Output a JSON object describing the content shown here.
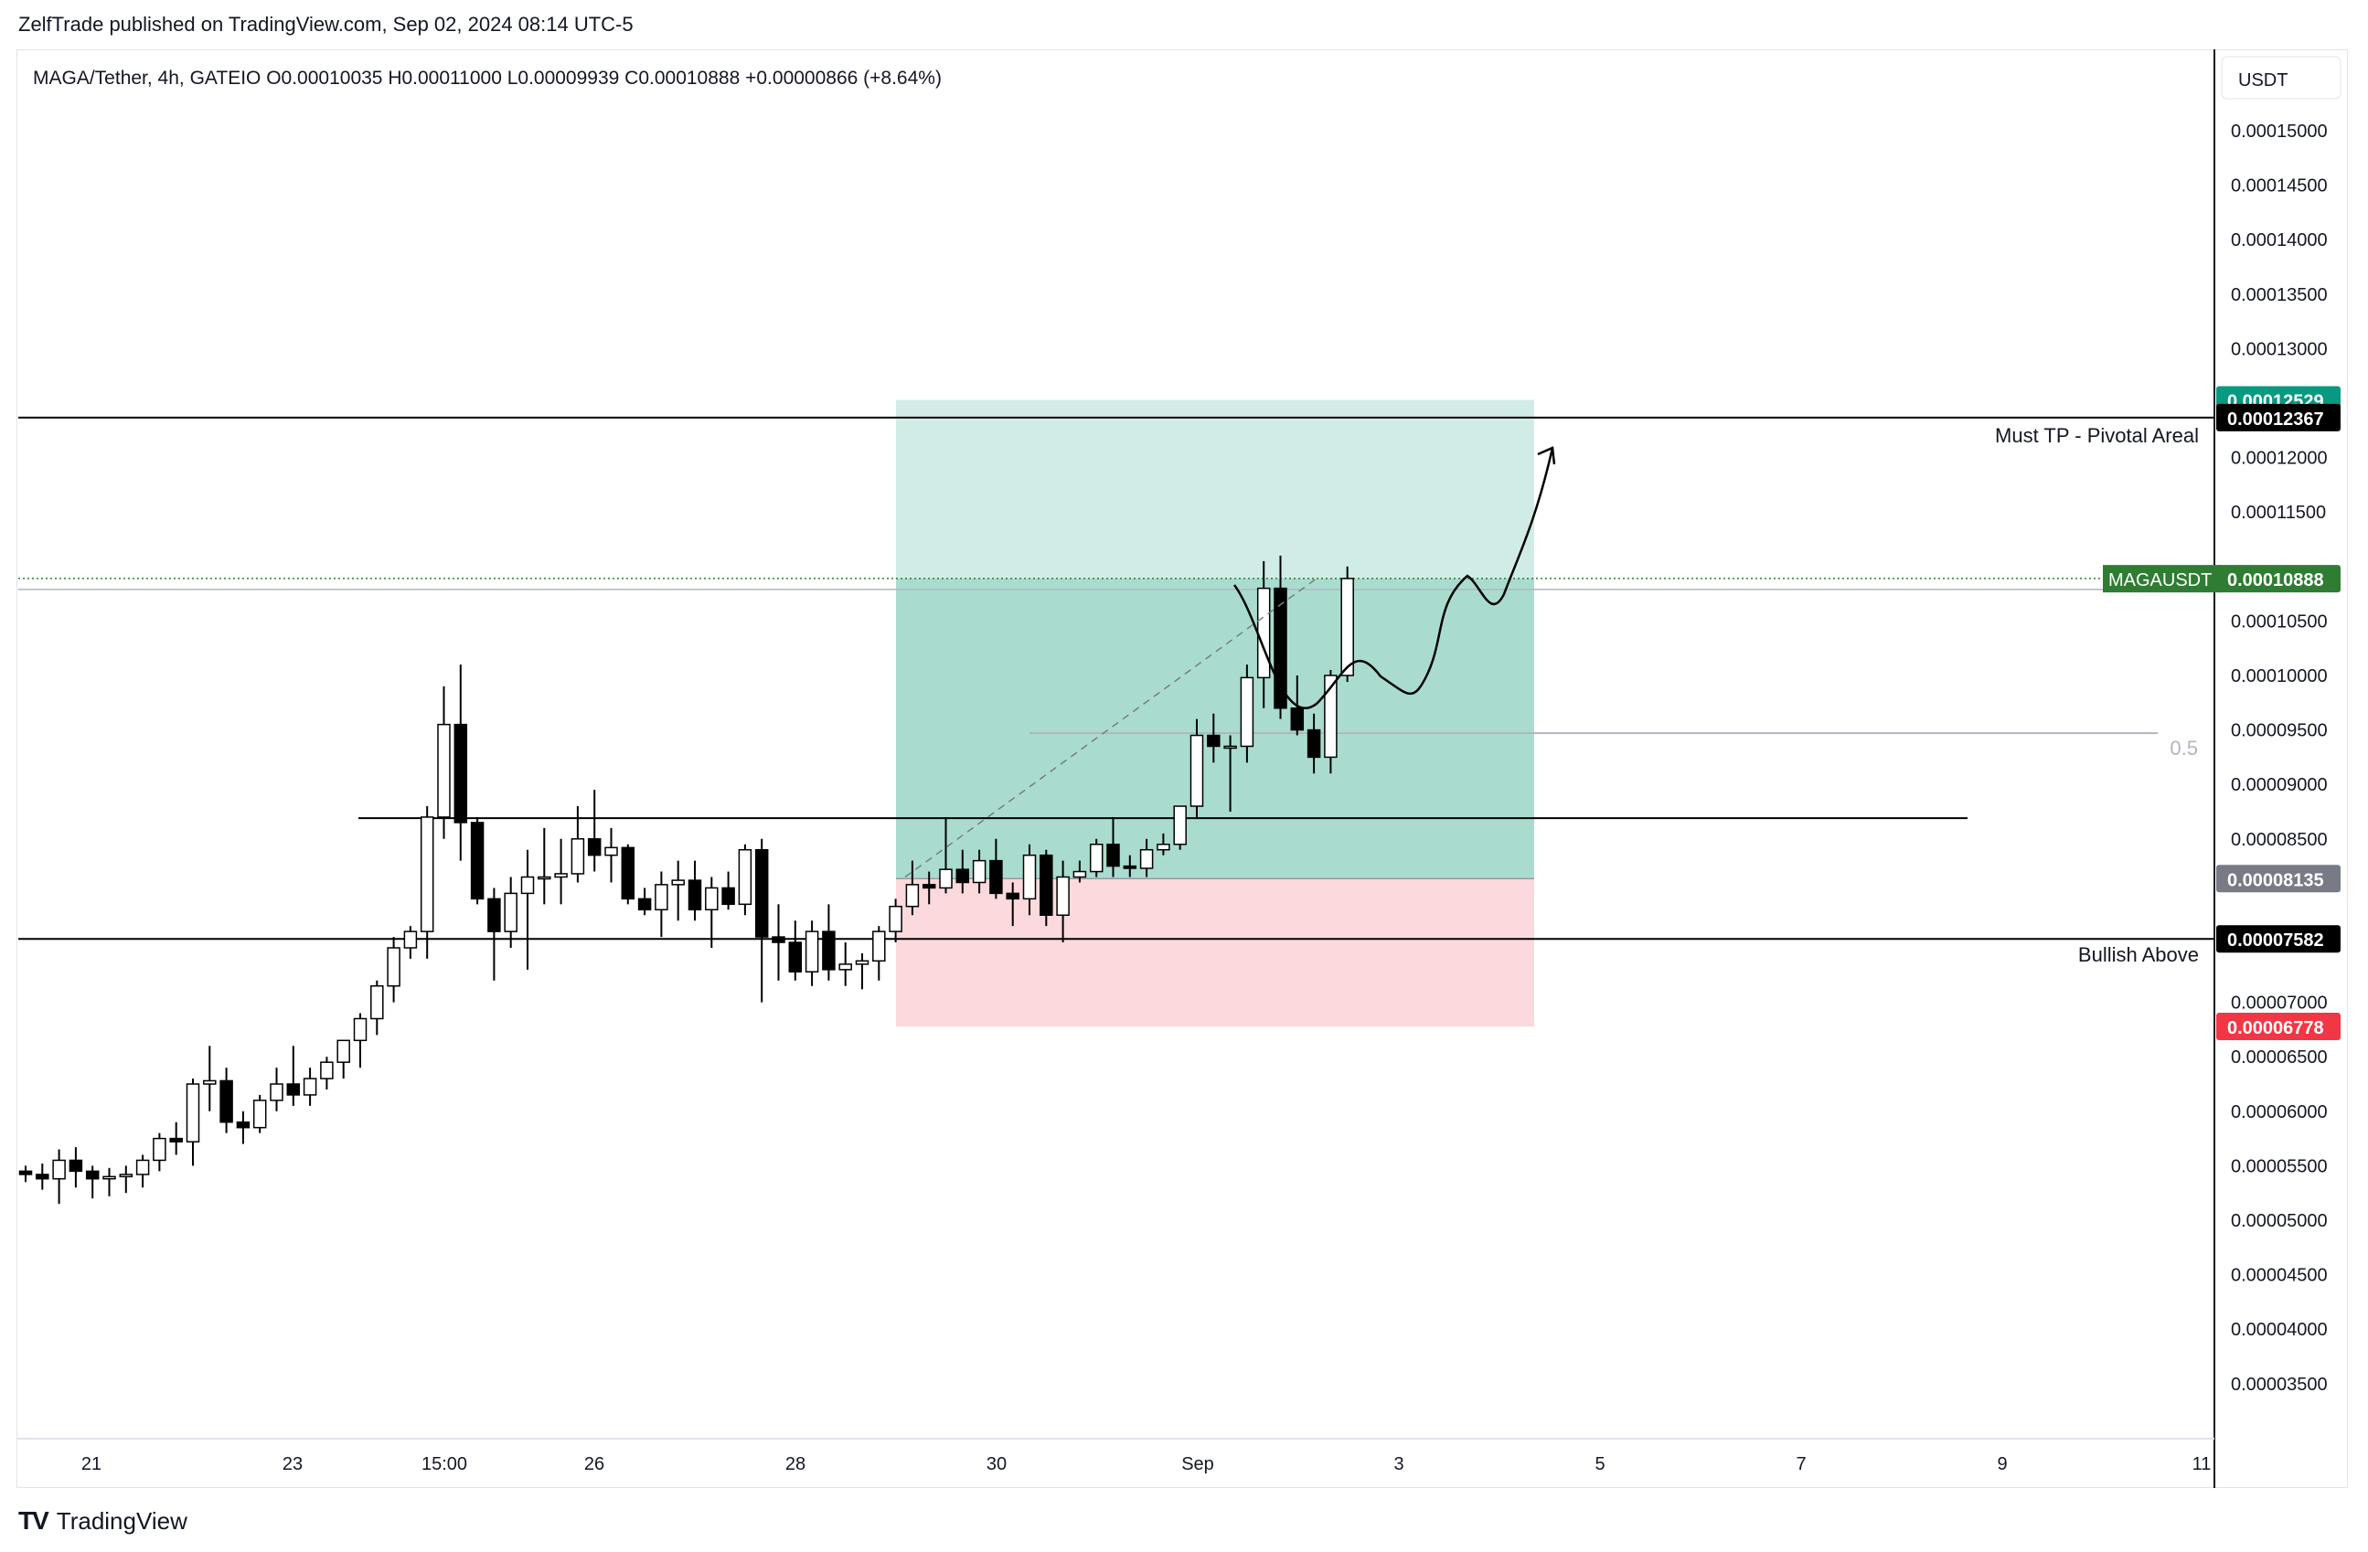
{
  "header": {
    "publisher_line": "ZelfTrade published on TradingView.com, Sep 02, 2024 08:14 UTC-5",
    "symbol_line": "MAGA/Tether, 4h, GATEIO  O0.00010035  H0.00011000  L0.00009939  C0.00010888  +0.00000866 (+8.64%)"
  },
  "footer": {
    "brand": "TradingView",
    "mark": "TV"
  },
  "price_axis": {
    "currency": "USDT",
    "ticks": [
      "0.00015000",
      "0.00014500",
      "0.00014000",
      "0.00013500",
      "0.00013000",
      "0.00012000",
      "0.00011500",
      "0.00010500",
      "0.00010000",
      "0.00009500",
      "0.00009000",
      "0.00008500",
      "0.00007000",
      "0.00006500",
      "0.00006000",
      "0.00005500",
      "0.00005000",
      "0.00004500",
      "0.00004000",
      "0.00003500"
    ],
    "tick_values": [
      0.00015,
      0.000145,
      0.00014,
      0.000135,
      0.00013,
      0.00012,
      0.000115,
      0.000105,
      0.0001,
      9.5e-05,
      9e-05,
      8.5e-05,
      7e-05,
      6.5e-05,
      6e-05,
      5.5e-05,
      5e-05,
      4.5e-05,
      4e-05,
      3.5e-05
    ]
  },
  "time_axis": {
    "labels": [
      "21",
      "23",
      "15:00",
      "26",
      "28",
      "30",
      "Sep",
      "3",
      "5",
      "7",
      "9",
      "11"
    ]
  },
  "badges": [
    {
      "value": 0.00012529,
      "text": "0.00012529",
      "color": "#089981"
    },
    {
      "value": 0.00012367,
      "text": "0.00012367",
      "color": "#000000"
    },
    {
      "value": 0.00010888,
      "text": "0.00010888",
      "color": "#2e7d32",
      "prefix": "MAGAUSDT"
    },
    {
      "value": 8.135e-05,
      "text": "0.00008135",
      "color": "#787b86"
    },
    {
      "value": 7.582e-05,
      "text": "0.00007582",
      "color": "#000000"
    },
    {
      "value": 6.778e-05,
      "text": "0.00006778",
      "color": "#f23645"
    }
  ],
  "annotations": {
    "must_tp": "Must TP - Pivotal Areal",
    "bullish_above": "Bullish Above",
    "fib_half": "0.5"
  },
  "colors": {
    "target_zone": "#d1ece6",
    "profit_zone": "#a9dccf",
    "stop_zone": "#fcd9dc",
    "candle_up": "#ffffff",
    "candle_down": "#000000"
  },
  "chart_data": {
    "type": "candlestick",
    "symbol": "MAGA/Tether",
    "interval": "4h",
    "exchange": "GATEIO",
    "ylim": [
      3.1e-05,
      0.0001575
    ],
    "horizontal_levels": [
      0.00012367,
      8.69e-05,
      7.582e-05
    ],
    "position": {
      "entry": 8.135e-05,
      "target": 0.00012529,
      "stop": 6.778e-05
    },
    "fib_mid_level": 9.47e-05,
    "candles": [
      [
        5.45e-05,
        5.5e-05,
        5.35e-05,
        5.42e-05
      ],
      [
        5.42e-05,
        5.52e-05,
        5.28e-05,
        5.38e-05
      ],
      [
        5.38e-05,
        5.65e-05,
        5.15e-05,
        5.55e-05
      ],
      [
        5.55e-05,
        5.67e-05,
        5.3e-05,
        5.45e-05
      ],
      [
        5.45e-05,
        5.5e-05,
        5.2e-05,
        5.38e-05
      ],
      [
        5.38e-05,
        5.48e-05,
        5.22e-05,
        5.4e-05
      ],
      [
        5.4e-05,
        5.5e-05,
        5.25e-05,
        5.42e-05
      ],
      [
        5.42e-05,
        5.6e-05,
        5.3e-05,
        5.55e-05
      ],
      [
        5.55e-05,
        5.8e-05,
        5.45e-05,
        5.75e-05
      ],
      [
        5.75e-05,
        5.9e-05,
        5.6e-05,
        5.72e-05
      ],
      [
        5.72e-05,
        6.3e-05,
        5.5e-05,
        6.25e-05
      ],
      [
        6.25e-05,
        6.6e-05,
        6e-05,
        6.28e-05
      ],
      [
        6.28e-05,
        6.4e-05,
        5.8e-05,
        5.9e-05
      ],
      [
        5.9e-05,
        6e-05,
        5.7e-05,
        5.85e-05
      ],
      [
        5.85e-05,
        6.15e-05,
        5.8e-05,
        6.1e-05
      ],
      [
        6.1e-05,
        6.4e-05,
        6e-05,
        6.25e-05
      ],
      [
        6.25e-05,
        6.6e-05,
        6.05e-05,
        6.15e-05
      ],
      [
        6.15e-05,
        6.4e-05,
        6.05e-05,
        6.3e-05
      ],
      [
        6.3e-05,
        6.5e-05,
        6.2e-05,
        6.45e-05
      ],
      [
        6.45e-05,
        6.6e-05,
        6.3e-05,
        6.65e-05
      ],
      [
        6.65e-05,
        6.9e-05,
        6.4e-05,
        6.85e-05
      ],
      [
        6.85e-05,
        7.2e-05,
        6.7e-05,
        7.15e-05
      ],
      [
        7.15e-05,
        7.6e-05,
        7e-05,
        7.5e-05
      ],
      [
        7.5e-05,
        7.7e-05,
        7.4e-05,
        7.65e-05
      ],
      [
        7.65e-05,
        8.8e-05,
        7.4e-05,
        8.7e-05
      ],
      [
        8.7e-05,
        9.9e-05,
        8.5e-05,
        9.55e-05
      ],
      [
        9.55e-05,
        0.000101,
        8.3e-05,
        8.65e-05
      ],
      [
        8.65e-05,
        8.7e-05,
        7.9e-05,
        7.95e-05
      ],
      [
        7.95e-05,
        8.05e-05,
        7.2e-05,
        7.65e-05
      ],
      [
        7.65e-05,
        8.15e-05,
        7.5e-05,
        8e-05
      ],
      [
        8e-05,
        8.4e-05,
        7.3e-05,
        8.15e-05
      ],
      [
        8.15e-05,
        8.6e-05,
        7.9e-05,
        8.15e-05
      ],
      [
        8.15e-05,
        8.5e-05,
        7.9e-05,
        8.18e-05
      ],
      [
        8.18e-05,
        8.8e-05,
        8.1e-05,
        8.5e-05
      ],
      [
        8.5e-05,
        8.95e-05,
        8.2e-05,
        8.35e-05
      ],
      [
        8.35e-05,
        8.6e-05,
        8.1e-05,
        8.42e-05
      ],
      [
        8.42e-05,
        8.45e-05,
        7.9e-05,
        7.95e-05
      ],
      [
        7.95e-05,
        8.05e-05,
        7.8e-05,
        7.85e-05
      ],
      [
        7.85e-05,
        8.2e-05,
        7.6e-05,
        8.08e-05
      ],
      [
        8.08e-05,
        8.3e-05,
        7.75e-05,
        8.12e-05
      ],
      [
        8.12e-05,
        8.3e-05,
        7.75e-05,
        7.85e-05
      ],
      [
        7.85e-05,
        8.15e-05,
        7.5e-05,
        8.05e-05
      ],
      [
        8.05e-05,
        8.2e-05,
        7.85e-05,
        7.9e-05
      ],
      [
        7.9e-05,
        8.45e-05,
        7.8e-05,
        8.4e-05
      ],
      [
        8.4e-05,
        8.5e-05,
        7e-05,
        7.6e-05
      ],
      [
        7.6e-05,
        7.9e-05,
        7.2e-05,
        7.55e-05
      ],
      [
        7.55e-05,
        7.75e-05,
        7.2e-05,
        7.28e-05
      ],
      [
        7.28e-05,
        7.75e-05,
        7.15e-05,
        7.65e-05
      ],
      [
        7.65e-05,
        7.9e-05,
        7.2e-05,
        7.3e-05
      ],
      [
        7.3e-05,
        7.55e-05,
        7.15e-05,
        7.35e-05
      ],
      [
        7.35e-05,
        7.45e-05,
        7.12e-05,
        7.38e-05
      ],
      [
        7.38e-05,
        7.7e-05,
        7.2e-05,
        7.65e-05
      ],
      [
        7.65e-05,
        7.95e-05,
        7.55e-05,
        7.88e-05
      ],
      [
        7.88e-05,
        8.3e-05,
        7.8e-05,
        8.08e-05
      ],
      [
        8.08e-05,
        8.2e-05,
        7.9e-05,
        8.05e-05
      ],
      [
        8.05e-05,
        8.7e-05,
        8e-05,
        8.22e-05
      ],
      [
        8.22e-05,
        8.4e-05,
        8e-05,
        8.1e-05
      ],
      [
        8.1e-05,
        8.4e-05,
        8e-05,
        8.3e-05
      ],
      [
        8.3e-05,
        8.5e-05,
        7.95e-05,
        8e-05
      ],
      [
        8e-05,
        8.1e-05,
        7.7e-05,
        7.95e-05
      ],
      [
        7.95e-05,
        8.45e-05,
        7.8e-05,
        8.35e-05
      ],
      [
        8.35e-05,
        8.4e-05,
        7.7e-05,
        7.8e-05
      ],
      [
        7.8e-05,
        8.3e-05,
        7.55e-05,
        8.15e-05
      ],
      [
        8.15e-05,
        8.3e-05,
        8.1e-05,
        8.2e-05
      ],
      [
        8.2e-05,
        8.5e-05,
        8.15e-05,
        8.45e-05
      ],
      [
        8.45e-05,
        8.7e-05,
        8.15e-05,
        8.25e-05
      ],
      [
        8.25e-05,
        8.35e-05,
        8.15e-05,
        8.23e-05
      ],
      [
        8.23e-05,
        8.5e-05,
        8.15e-05,
        8.4e-05
      ],
      [
        8.4e-05,
        8.55e-05,
        8.35e-05,
        8.45e-05
      ],
      [
        8.45e-05,
        8.8e-05,
        8.4e-05,
        8.8e-05
      ],
      [
        8.8e-05,
        9.6e-05,
        8.7e-05,
        9.45e-05
      ],
      [
        9.45e-05,
        9.65e-05,
        9.2e-05,
        9.35e-05
      ],
      [
        9.35e-05,
        9.45e-05,
        8.75e-05,
        9.35e-05
      ],
      [
        9.35e-05,
        0.000101,
        9.2e-05,
        9.98e-05
      ],
      [
        9.98e-05,
        0.0001105,
        9.7e-05,
        0.000108
      ],
      [
        0.000108,
        0.000111,
        9.6e-05,
        9.7e-05
      ],
      [
        9.7e-05,
        0.0001,
        9.45e-05,
        9.5e-05
      ],
      [
        9.5e-05,
        9.65e-05,
        9.1e-05,
        9.25e-05
      ],
      [
        9.25e-05,
        0.0001005,
        9.1e-05,
        0.0001
      ],
      [
        0.0001,
        0.00011,
        9.94e-05,
        0.0001089
      ]
    ]
  }
}
